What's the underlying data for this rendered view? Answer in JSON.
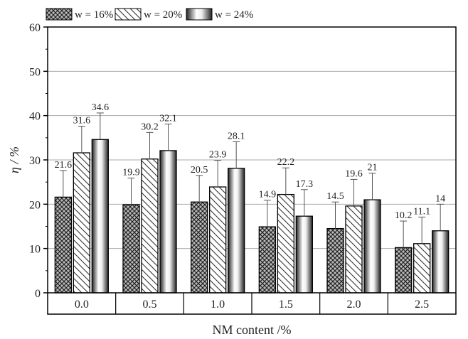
{
  "chart_data": {
    "type": "bar",
    "title": "",
    "xlabel": "NM content /%",
    "ylabel": "η / %",
    "ylim": [
      0,
      60
    ],
    "yticks": [
      0,
      10,
      20,
      30,
      40,
      50,
      60
    ],
    "grid": true,
    "legend_position": "top-left",
    "categories": [
      "0.0",
      "0.5",
      "1.0",
      "1.5",
      "2.0",
      "2.5"
    ],
    "series": [
      {
        "name": "w = 16%",
        "pattern": "crosshatch",
        "values": [
          21.6,
          19.9,
          20.5,
          14.9,
          14.5,
          10.2
        ],
        "labels": [
          "21.6",
          "19.9",
          "20.5",
          "14.9",
          "14.5",
          "10.2"
        ]
      },
      {
        "name": "w = 20%",
        "pattern": "diagonal",
        "values": [
          31.6,
          30.2,
          23.9,
          22.2,
          19.6,
          11.1
        ],
        "labels": [
          "31.6",
          "30.2",
          "23.9",
          "22.2",
          "19.6",
          "11.1"
        ]
      },
      {
        "name": "w = 24%",
        "pattern": "cylinder-gradient",
        "values": [
          34.6,
          32.1,
          28.1,
          17.3,
          21,
          14
        ],
        "labels": [
          "34.6",
          "32.1",
          "28.1",
          "17.3",
          "21",
          "14"
        ]
      }
    ],
    "error_bar": 6
  }
}
